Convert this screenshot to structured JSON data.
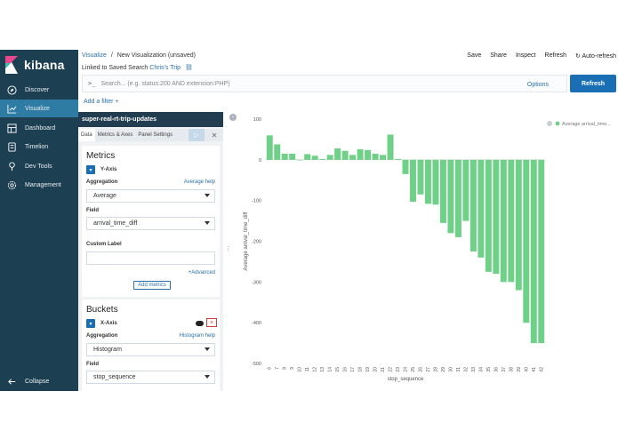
{
  "app": {
    "name": "kibana"
  },
  "sidebar": {
    "items": [
      {
        "label": "Discover",
        "icon": "compass-icon"
      },
      {
        "label": "Visualize",
        "icon": "bar-chart-icon",
        "active": true
      },
      {
        "label": "Dashboard",
        "icon": "dashboard-icon"
      },
      {
        "label": "Timelion",
        "icon": "timelion-icon"
      },
      {
        "label": "Dev Tools",
        "icon": "wrench-icon"
      },
      {
        "label": "Management",
        "icon": "gear-icon"
      }
    ],
    "collapse_label": "Collapse"
  },
  "header": {
    "breadcrumb_root": "Visualize",
    "breadcrumb_sep": "/",
    "breadcrumb_current": "New Visualization (unsaved)",
    "actions": [
      "Save",
      "Share",
      "Inspect",
      "Refresh"
    ],
    "auto_refresh": "Auto-refresh",
    "linked_prefix": "Linked to Saved Search",
    "linked_search": "Chris's Trip",
    "search_prompt": ">_",
    "search_placeholder": "Search... (e.g. status:200 AND extension:PHP)",
    "options_label": "Options",
    "refresh_button": "Refresh",
    "add_filter": "Add a filter +"
  },
  "editor": {
    "index_title": "super-real-rt-trip-updates",
    "tabs": [
      "Data",
      "Metrics & Axes",
      "Panel Settings"
    ],
    "metrics": {
      "title": "Metrics",
      "axis_label": "Y-Axis",
      "aggregation_label": "Aggregation",
      "aggregation_help": "Average help",
      "aggregation_value": "Average",
      "field_label": "Field",
      "field_value": "arrival_time_diff",
      "custom_label": "Custom Label",
      "custom_value": "",
      "advanced": "+Advanced",
      "add_metrics": "Add metrics"
    },
    "buckets": {
      "title": "Buckets",
      "axis_label": "X-Axis",
      "aggregation_label": "Aggregation",
      "aggregation_help": "Histogram help",
      "aggregation_value": "Histogram",
      "field_label": "Field",
      "field_value": "stop_sequence"
    }
  },
  "chart_data": {
    "type": "bar",
    "xlabel": "stop_sequence",
    "ylabel": "Average arrival_time_diff",
    "legend": "Average arrival_time...",
    "legend_position": "top-right",
    "ylim": [
      -500,
      100
    ],
    "yticks": [
      100,
      0,
      -100,
      -200,
      -300,
      -400,
      -500
    ],
    "categories": [
      6,
      7,
      8,
      9,
      10,
      11,
      12,
      13,
      14,
      15,
      16,
      17,
      18,
      19,
      20,
      21,
      22,
      23,
      24,
      25,
      26,
      27,
      28,
      29,
      30,
      31,
      32,
      33,
      34,
      35,
      36,
      37,
      38,
      39,
      40,
      41,
      42
    ],
    "values": [
      60,
      38,
      15,
      15,
      0,
      14,
      10,
      2,
      12,
      28,
      22,
      12,
      26,
      24,
      15,
      12,
      62,
      2,
      -35,
      -103,
      -85,
      -108,
      -110,
      -155,
      -180,
      -190,
      -150,
      -225,
      -240,
      -275,
      -280,
      -300,
      -300,
      -320,
      -400,
      -450,
      -450
    ],
    "bar_color": "#6fd088",
    "grid": false
  }
}
